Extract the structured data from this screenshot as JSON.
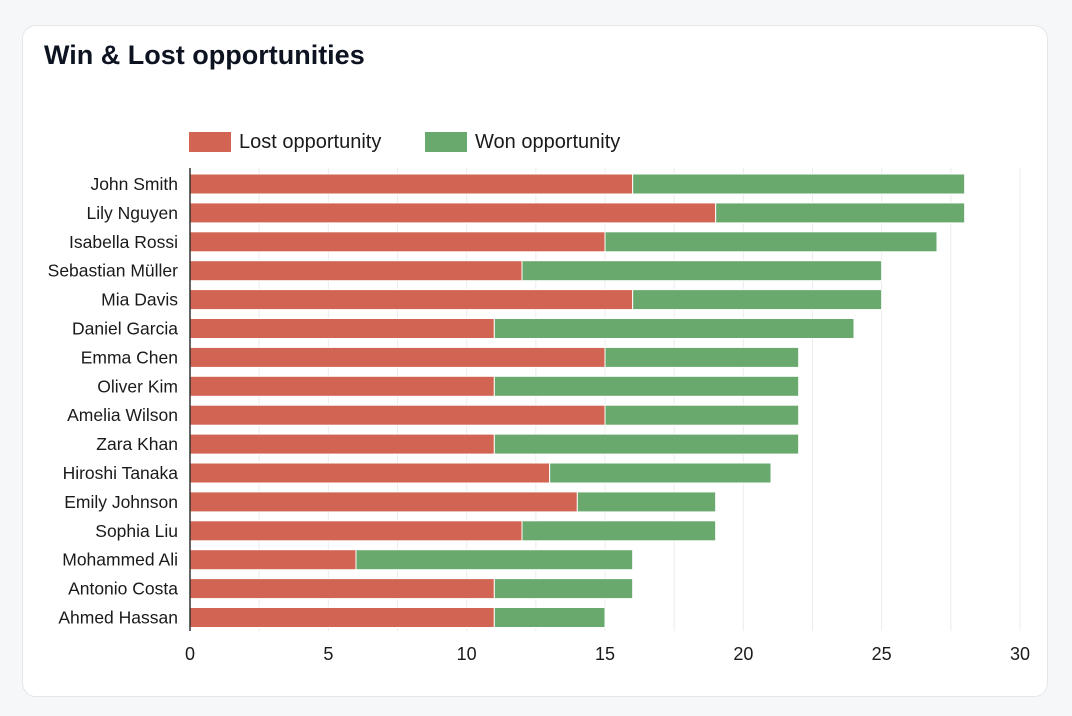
{
  "card": {
    "title": "Win & Lost opportunities"
  },
  "chart_data": {
    "type": "bar",
    "orientation": "horizontal",
    "stacked": true,
    "title": "Win & Lost opportunities",
    "xlabel": "",
    "ylabel": "",
    "xlim": [
      0,
      30
    ],
    "xticks": [
      0,
      5,
      10,
      15,
      20,
      25,
      30
    ],
    "grid": "vertical",
    "legend_position": "top-left",
    "categories": [
      "John Smith",
      "Lily Nguyen",
      "Isabella Rossi",
      "Sebastian Müller",
      "Mia Davis",
      "Daniel Garcia",
      "Emma Chen",
      "Oliver Kim",
      "Amelia Wilson",
      "Zara Khan",
      "Hiroshi Tanaka",
      "Emily Johnson",
      "Sophia Liu",
      "Mohammed Ali",
      "Antonio Costa",
      "Ahmed Hassan"
    ],
    "series": [
      {
        "name": "Lost opportunity",
        "color": "#d16452",
        "values": [
          16,
          19,
          15,
          12,
          16,
          11,
          15,
          11,
          15,
          11,
          13,
          14,
          12,
          6,
          11,
          11
        ]
      },
      {
        "name": "Won opportunity",
        "color": "#6aa96d",
        "values": [
          12,
          9,
          12,
          13,
          9,
          13,
          7,
          11,
          7,
          11,
          8,
          5,
          7,
          10,
          5,
          4
        ]
      }
    ]
  }
}
